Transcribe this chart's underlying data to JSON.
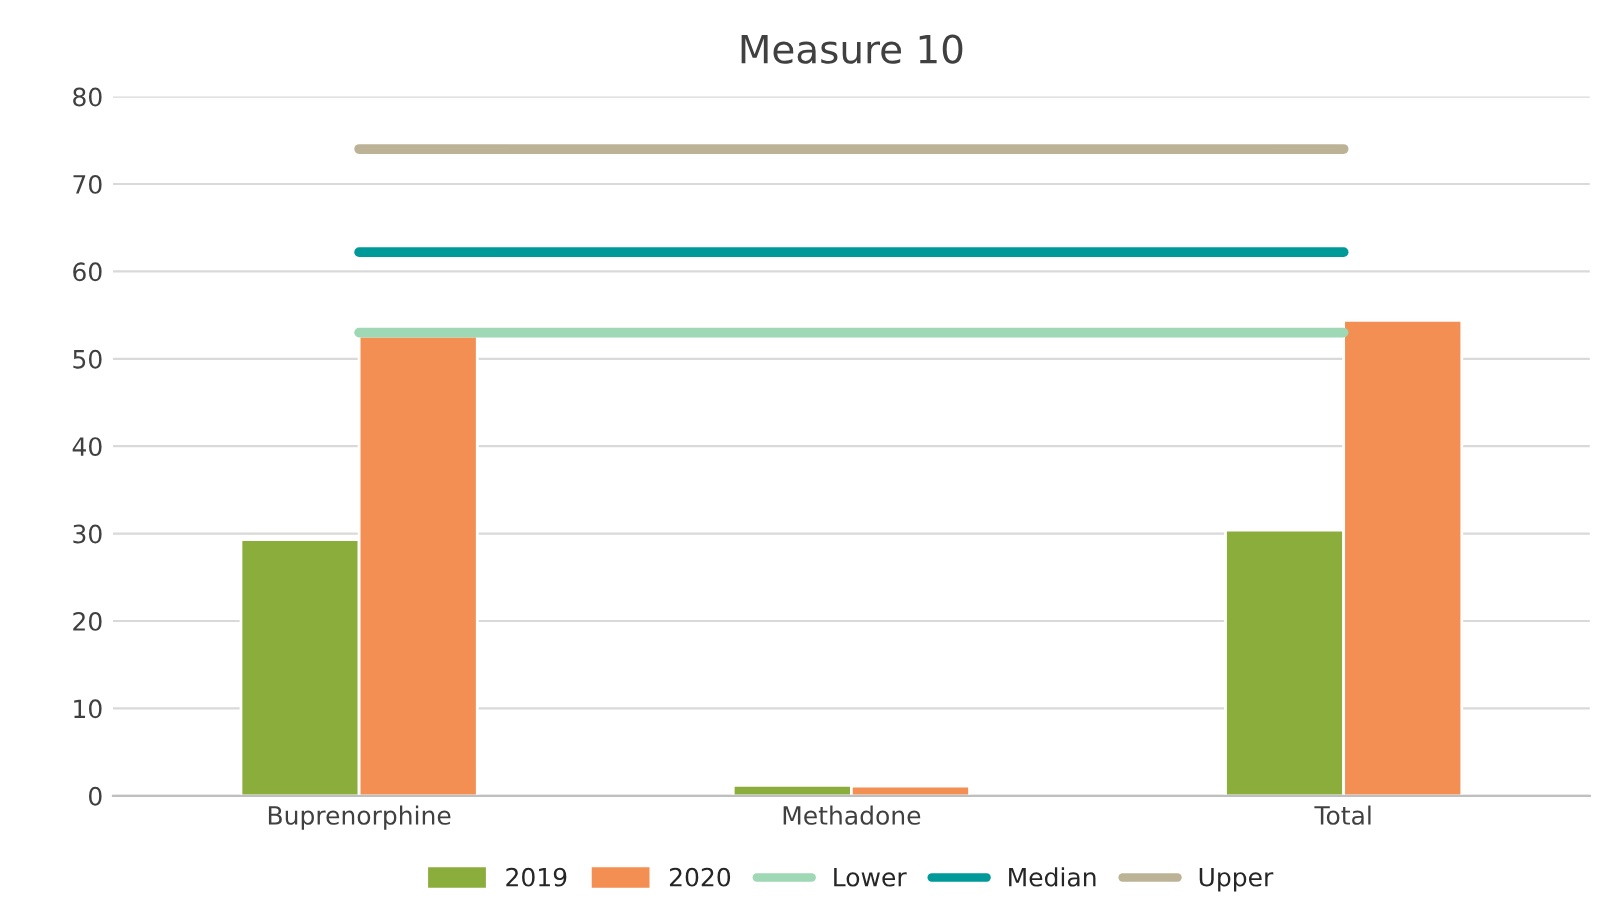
{
  "chart_data": {
    "type": "bar",
    "title": "Measure 10",
    "categories": [
      "Buprenorphine",
      "Methadone",
      "Total"
    ],
    "series": [
      {
        "name": "2019",
        "color": "#8aad3c",
        "values": [
          29.3,
          1.2,
          30.4
        ]
      },
      {
        "name": "2020",
        "color": "#f38f52",
        "values": [
          52.6,
          1.1,
          54.4
        ]
      },
      {
        "name": "Lower",
        "type": "line",
        "color": "#9ed8b4",
        "values": [
          53,
          53,
          53
        ]
      },
      {
        "name": "Median",
        "type": "line",
        "color": "#00999a",
        "values": [
          62.2,
          62.2,
          62.2
        ]
      },
      {
        "name": "Upper",
        "type": "line",
        "color": "#bcb396",
        "values": [
          74,
          74,
          74
        ]
      }
    ],
    "ylim": [
      0,
      80
    ],
    "yticks": [
      0,
      10,
      20,
      30,
      40,
      50,
      60,
      70,
      80
    ],
    "grid": "y",
    "legend": "bottom",
    "marker": "none",
    "line_style": "solid"
  }
}
